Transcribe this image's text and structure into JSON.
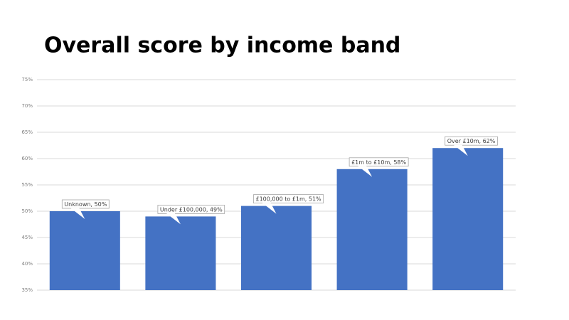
{
  "chart_data": {
    "type": "bar",
    "title": "Overall score by income band",
    "values": [
      50,
      49,
      51,
      58,
      62
    ],
    "value_labels": [
      "Unknown, 50%",
      "Under £100,000,  49%",
      "£100,000  to £1m, 51%",
      "£1m to £10m, 58%",
      "Over £10m, 62%"
    ],
    "color": "#4472c4",
    "ylim": [
      35,
      75
    ],
    "yticks": [
      {
        "value": 35,
        "label": "35%"
      },
      {
        "value": 40,
        "label": "40%"
      },
      {
        "value": 45,
        "label": "45%"
      },
      {
        "value": 50,
        "label": "50%"
      },
      {
        "value": 55,
        "label": "55%"
      },
      {
        "value": 60,
        "label": "60%"
      },
      {
        "value": 65,
        "label": "65%"
      },
      {
        "value": 70,
        "label": "70%"
      },
      {
        "value": 75,
        "label": "75%"
      }
    ],
    "grid": true
  }
}
